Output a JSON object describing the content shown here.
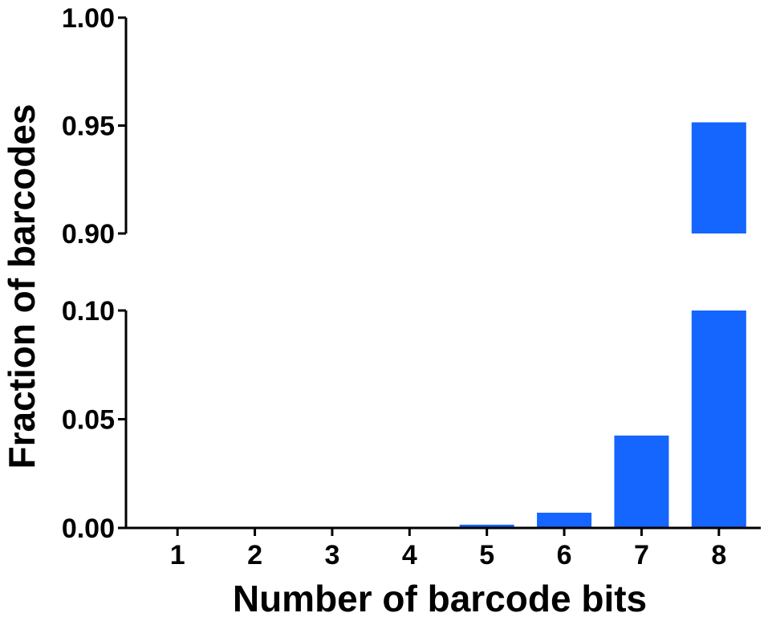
{
  "chart_data": {
    "type": "bar",
    "categories": [
      "1",
      "2",
      "3",
      "4",
      "5",
      "6",
      "7",
      "8"
    ],
    "values": [
      0.0,
      0.0,
      0.0,
      0.0,
      0.0015,
      0.007,
      0.0425,
      0.9515
    ],
    "xlabel": "Number of barcode bits",
    "ylabel": "Fraction of barcodes",
    "y_axis_broken": true,
    "y_segments": [
      {
        "ylim": [
          0.0,
          0.1
        ],
        "ticks": [
          "0.00",
          "0.05",
          "0.10"
        ]
      },
      {
        "ylim": [
          0.9,
          1.0
        ],
        "ticks": [
          "0.90",
          "0.95",
          "1.00"
        ]
      }
    ],
    "bar_color": "#1565ff",
    "grid": false,
    "legend": "none"
  }
}
